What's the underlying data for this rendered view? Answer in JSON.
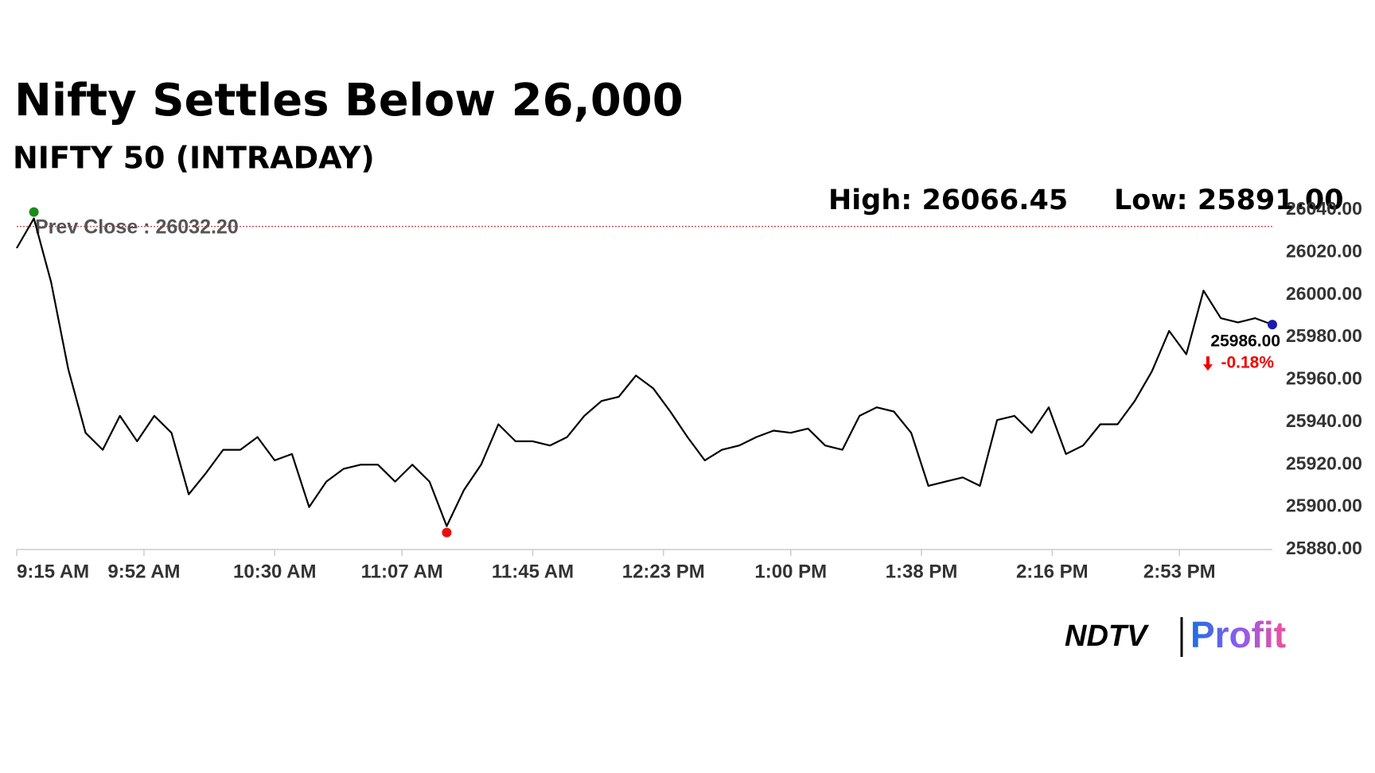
{
  "chart_data": {
    "type": "line",
    "title": "Nifty Settles Below 26,000",
    "subtitle": "NIFTY 50 (INTRADAY)",
    "high_label": "High: 26066.45",
    "low_label": "Low: 25891.00",
    "prev_close": {
      "value": 26032.2,
      "label": "Prev Close : 26032.20"
    },
    "last_price": {
      "value": 25986,
      "label": "25986.00"
    },
    "change_label": "-0.18%",
    "x": [
      "9:15 AM",
      "9:20 AM",
      "9:25 AM",
      "9:30 AM",
      "9:35 AM",
      "9:40 AM",
      "9:45 AM",
      "9:50 AM",
      "9:55 AM",
      "10:00 AM",
      "10:05 AM",
      "10:10 AM",
      "10:15 AM",
      "10:20 AM",
      "10:25 AM",
      "10:30 AM",
      "10:35 AM",
      "10:40 AM",
      "10:45 AM",
      "10:50 AM",
      "10:55 AM",
      "11:00 AM",
      "11:05 AM",
      "11:10 AM",
      "11:15 AM",
      "11:20 AM",
      "11:25 AM",
      "11:30 AM",
      "11:35 AM",
      "11:40 AM",
      "11:45 AM",
      "11:50 AM",
      "11:55 AM",
      "12:00 PM",
      "12:05 PM",
      "12:10 PM",
      "12:15 PM",
      "12:20 PM",
      "12:25 PM",
      "12:30 PM",
      "12:35 PM",
      "12:40 PM",
      "12:45 PM",
      "12:50 PM",
      "12:55 PM",
      "1:00 PM",
      "1:05 PM",
      "1:10 PM",
      "1:15 PM",
      "1:20 PM",
      "1:25 PM",
      "1:30 PM",
      "1:35 PM",
      "1:40 PM",
      "1:45 PM",
      "1:50 PM",
      "1:55 PM",
      "2:00 PM",
      "2:05 PM",
      "2:10 PM",
      "2:15 PM",
      "2:20 PM",
      "2:25 PM",
      "2:30 PM",
      "2:35 PM",
      "2:40 PM",
      "2:45 PM",
      "2:50 PM",
      "2:55 PM",
      "3:00 PM",
      "3:05 PM",
      "3:10 PM",
      "3:15 PM",
      "3:20 PM"
    ],
    "series": [
      {
        "name": "NIFTY 50",
        "color": "#000000",
        "values": [
          26022,
          26036,
          26006,
          25965,
          25935,
          25927,
          25943,
          25931,
          25943,
          25935,
          25906,
          25916,
          25927,
          25927,
          25933,
          25922,
          25925,
          25900,
          25912,
          25918,
          25920,
          25920,
          25912,
          25920,
          25912,
          25891,
          25908,
          25920,
          25939,
          25931,
          25931,
          25929,
          25933,
          25943,
          25950,
          25952,
          25962,
          25956,
          25945,
          25933,
          25922,
          25927,
          25929,
          25933,
          25936,
          25935,
          25937,
          25929,
          25927,
          25943,
          25947,
          25945,
          25935,
          25910,
          25912,
          25914,
          25910,
          25941,
          25943,
          25935,
          25947,
          25925,
          25929,
          25939,
          25939,
          25950,
          25964,
          25983,
          25972,
          26002,
          25989,
          25987,
          25989,
          25986
        ]
      }
    ],
    "xlim": [
      "9:15 AM",
      "3:20 PM"
    ],
    "xticks": [
      "9:15 AM",
      "9:52 AM",
      "10:30 AM",
      "11:07 AM",
      "11:45 AM",
      "12:23 PM",
      "1:00 PM",
      "1:38 PM",
      "2:16 PM",
      "2:53 PM"
    ],
    "ylim": [
      25880,
      26040
    ],
    "yticks": [
      {
        "value": 25880,
        "label": "25880.00"
      },
      {
        "value": 25900,
        "label": "25900.00"
      },
      {
        "value": 25920,
        "label": "25920.00"
      },
      {
        "value": 25940,
        "label": "25940.00"
      },
      {
        "value": 25960,
        "label": "25960.00"
      },
      {
        "value": 25980,
        "label": "25980.00"
      },
      {
        "value": 26000,
        "label": "26000.00"
      },
      {
        "value": 26020,
        "label": "26020.00"
      },
      {
        "value": 26040,
        "label": "26040.00"
      }
    ],
    "grid": false,
    "logo": {
      "brand": "NDTV",
      "product": "Profit"
    }
  }
}
